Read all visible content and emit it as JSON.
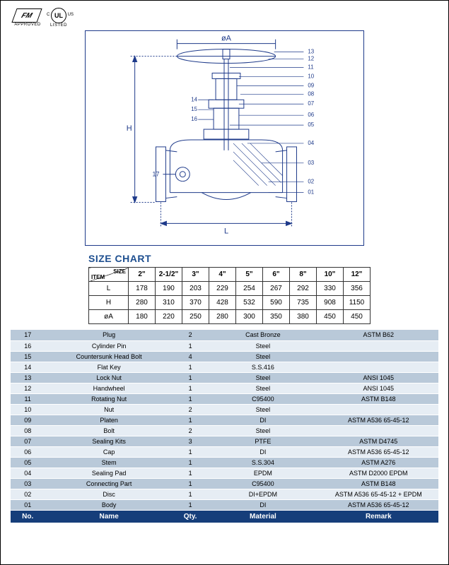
{
  "logos": {
    "fm": {
      "text": "FM",
      "label": "APPROVED"
    },
    "ul": {
      "text": "UL",
      "left": "C",
      "right": "US",
      "label": "LISTED"
    }
  },
  "drawing": {
    "labels": {
      "dimA": "øA",
      "dimH": "H",
      "dimL": "L"
    },
    "callouts_right": [
      "13",
      "12",
      "11",
      "10",
      "09",
      "08",
      "07",
      "06",
      "05",
      "04",
      "03",
      "02",
      "01"
    ],
    "callouts_left": [
      "14",
      "15",
      "16",
      "17"
    ]
  },
  "section_title": "SIZE CHART",
  "size_chart": {
    "diag": {
      "top": "SIZE",
      "bottom": "ITEM"
    },
    "sizes": [
      "2\"",
      "2-1/2\"",
      "3\"",
      "4\"",
      "5\"",
      "6\"",
      "8\"",
      "10\"",
      "12\""
    ],
    "rows": [
      {
        "label": "L",
        "values": [
          "178",
          "190",
          "203",
          "229",
          "254",
          "267",
          "292",
          "330",
          "356"
        ]
      },
      {
        "label": "H",
        "values": [
          "280",
          "310",
          "370",
          "428",
          "532",
          "590",
          "735",
          "908",
          "1150"
        ]
      },
      {
        "label": "øA",
        "values": [
          "180",
          "220",
          "250",
          "280",
          "300",
          "350",
          "380",
          "450",
          "450"
        ]
      }
    ]
  },
  "parts": {
    "header": {
      "no": "No.",
      "name": "Name",
      "qty": "Qty.",
      "material": "Material",
      "remark": "Remark"
    },
    "rows": [
      {
        "no": "17",
        "name": "Plug",
        "qty": "2",
        "material": "Cast Bronze",
        "remark": "ASTM  B62"
      },
      {
        "no": "16",
        "name": "Cylinder Pin",
        "qty": "1",
        "material": "Steel",
        "remark": ""
      },
      {
        "no": "15",
        "name": "Countersunk Head Bolt",
        "qty": "4",
        "material": "Steel",
        "remark": ""
      },
      {
        "no": "14",
        "name": "Flat Key",
        "qty": "1",
        "material": "S.S.416",
        "remark": ""
      },
      {
        "no": "13",
        "name": "Lock Nut",
        "qty": "1",
        "material": "Steel",
        "remark": "ANSI 1045"
      },
      {
        "no": "12",
        "name": "Handwheel",
        "qty": "1",
        "material": "Steel",
        "remark": "ANSI 1045"
      },
      {
        "no": "11",
        "name": "Rotating Nut",
        "qty": "1",
        "material": "C95400",
        "remark": "ASTM  B148"
      },
      {
        "no": "10",
        "name": "Nut",
        "qty": "2",
        "material": "Steel",
        "remark": ""
      },
      {
        "no": "09",
        "name": "Platen",
        "qty": "1",
        "material": "DI",
        "remark": "ASTM A536 65-45-12"
      },
      {
        "no": "08",
        "name": "Bolt",
        "qty": "2",
        "material": "Steel",
        "remark": ""
      },
      {
        "no": "07",
        "name": "Sealing Kits",
        "qty": "3",
        "material": "PTFE",
        "remark": "ASTM  D4745"
      },
      {
        "no": "06",
        "name": "Cap",
        "qty": "1",
        "material": "DI",
        "remark": "ASTM A536 65-45-12"
      },
      {
        "no": "05",
        "name": "Stem",
        "qty": "1",
        "material": "S.S.304",
        "remark": "ASTM  A276"
      },
      {
        "no": "04",
        "name": "Sealing Pad",
        "qty": "1",
        "material": "EPDM",
        "remark": "ASTM  D2000  EPDM"
      },
      {
        "no": "03",
        "name": "Connecting Part",
        "qty": "1",
        "material": "C95400",
        "remark": "ASTM  B148"
      },
      {
        "no": "02",
        "name": "Disc",
        "qty": "1",
        "material": "DI+EPDM",
        "remark": "ASTM A536 65-45-12 + EPDM"
      },
      {
        "no": "01",
        "name": "Body",
        "qty": "1",
        "material": "DI",
        "remark": "ASTM A536 65-45-12"
      }
    ]
  },
  "colors": {
    "row_light": "#e6edf4",
    "row_dark": "#b9c9d9",
    "header_bg": "#163e7a",
    "title": "#1d4e8f",
    "drawing_border": "#1e3a8a"
  }
}
